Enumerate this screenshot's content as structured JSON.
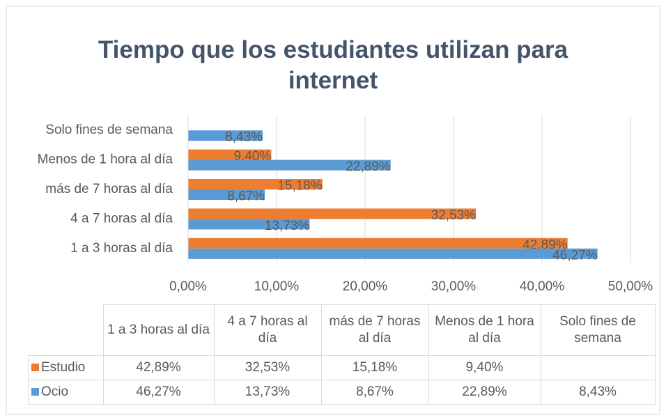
{
  "chart_data": {
    "type": "bar",
    "orientation": "horizontal",
    "title": "Tiempo que los estudiantes utilizan para internet",
    "categories": [
      "1 a 3 horas al día",
      "4 a 7 horas al día",
      "más de 7 horas al día",
      "Menos de 1 hora al día",
      "Solo fines de semana"
    ],
    "series": [
      {
        "name": "Estudio",
        "color": "#ed7d31",
        "values": [
          42.89,
          32.53,
          15.18,
          9.4,
          null
        ],
        "value_labels": [
          "42,89%",
          "32,53%",
          "15,18%",
          "9,40%",
          null
        ]
      },
      {
        "name": "Ocio",
        "color": "#5b9bd5",
        "values": [
          46.27,
          13.73,
          8.67,
          22.89,
          8.43
        ],
        "value_labels": [
          "46,27%",
          "13,73%",
          "8,67%",
          "22,89%",
          "8,43%"
        ]
      }
    ],
    "xlim": [
      0,
      50
    ],
    "xticks": [
      {
        "value": 0,
        "label": "0,00%"
      },
      {
        "value": 10,
        "label": "10,00%"
      },
      {
        "value": 20,
        "label": "20,00%"
      },
      {
        "value": 30,
        "label": "30,00%"
      },
      {
        "value": 40,
        "label": "40,00%"
      },
      {
        "value": 50,
        "label": "50,00%"
      }
    ],
    "grid": true,
    "data_table": true
  }
}
